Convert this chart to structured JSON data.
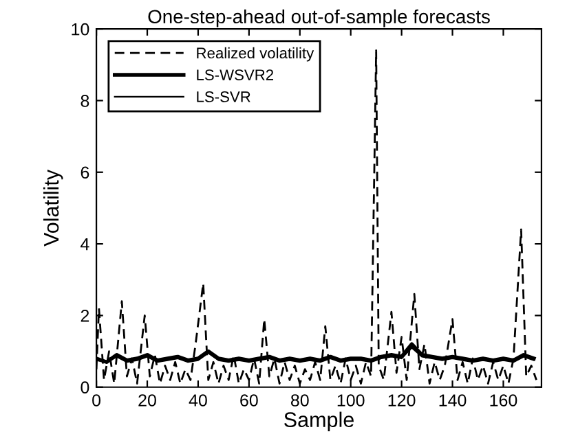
{
  "chart_data": {
    "type": "line",
    "title": "One-step-ahead out-of-sample forecasts",
    "xlabel": "Sample",
    "ylabel": "Volatility",
    "xlim": [
      0,
      175
    ],
    "ylim": [
      0,
      10
    ],
    "xticks": [
      0,
      20,
      40,
      60,
      80,
      100,
      120,
      140,
      160
    ],
    "yticks": [
      0,
      2,
      4,
      6,
      8,
      10
    ],
    "grid": false,
    "legend": "top left",
    "series": [
      {
        "name": "Realized volatility",
        "color": "#000000",
        "line_style": "dashed",
        "x": [
          0,
          1,
          3,
          5,
          7,
          10,
          12,
          14,
          16,
          19,
          21,
          23,
          25,
          27,
          29,
          31,
          33,
          35,
          37,
          39,
          42,
          44,
          46,
          48,
          50,
          52,
          54,
          56,
          58,
          60,
          62,
          64,
          66,
          68,
          70,
          72,
          74,
          76,
          78,
          80,
          82,
          84,
          86,
          88,
          90,
          92,
          94,
          96,
          98,
          100,
          102,
          104,
          106,
          108,
          110,
          111,
          113,
          116,
          118,
          120,
          122,
          125,
          127,
          129,
          131,
          133,
          135,
          137,
          140,
          142,
          144,
          146,
          148,
          150,
          152,
          154,
          156,
          158,
          160,
          162,
          164,
          167,
          169,
          171,
          173
        ],
        "values": [
          0.5,
          2.2,
          0.2,
          1.0,
          0.1,
          2.4,
          0.3,
          0.8,
          0.1,
          2.0,
          0.3,
          0.9,
          0.1,
          0.6,
          0.2,
          0.7,
          0.1,
          0.5,
          0.2,
          1.2,
          2.9,
          0.2,
          0.7,
          0.1,
          0.6,
          0.2,
          0.9,
          0.1,
          0.5,
          0.2,
          0.8,
          0.1,
          1.9,
          0.3,
          0.8,
          0.1,
          0.7,
          0.2,
          0.6,
          0.1,
          0.5,
          0.2,
          0.7,
          0.2,
          1.7,
          0.2,
          0.6,
          0.1,
          0.8,
          0.2,
          0.6,
          0.1,
          0.7,
          0.3,
          9.4,
          0.6,
          0.2,
          2.1,
          0.4,
          1.4,
          0.2,
          2.6,
          0.5,
          1.2,
          0.1,
          0.7,
          0.2,
          0.6,
          1.9,
          0.2,
          0.7,
          0.1,
          0.8,
          0.2,
          0.6,
          0.1,
          0.7,
          0.2,
          0.6,
          0.1,
          0.8,
          4.4,
          0.3,
          0.6,
          0.2
        ]
      },
      {
        "name": "LS-WSVR2",
        "color": "#000000",
        "line_style": "solid",
        "x": [
          0,
          4,
          8,
          12,
          16,
          20,
          24,
          28,
          32,
          36,
          40,
          44,
          48,
          52,
          56,
          60,
          64,
          68,
          72,
          76,
          80,
          84,
          88,
          92,
          96,
          100,
          104,
          108,
          112,
          116,
          120,
          124,
          128,
          132,
          136,
          140,
          144,
          148,
          152,
          156,
          160,
          164,
          168,
          172
        ],
        "values": [
          0.8,
          0.7,
          0.9,
          0.75,
          0.8,
          0.9,
          0.75,
          0.8,
          0.85,
          0.75,
          0.8,
          1.0,
          0.8,
          0.75,
          0.8,
          0.75,
          0.8,
          0.85,
          0.75,
          0.8,
          0.75,
          0.8,
          0.75,
          0.85,
          0.75,
          0.8,
          0.8,
          0.75,
          0.85,
          0.9,
          0.85,
          1.2,
          0.9,
          0.85,
          0.8,
          0.85,
          0.8,
          0.75,
          0.8,
          0.75,
          0.8,
          0.75,
          0.9,
          0.8
        ]
      },
      {
        "name": "LS-SVR",
        "color": "#000000",
        "line_style": "solid",
        "x": [
          0,
          4,
          8,
          12,
          16,
          20,
          24,
          28,
          32,
          36,
          40,
          44,
          48,
          52,
          56,
          60,
          64,
          68,
          72,
          76,
          80,
          84,
          88,
          92,
          96,
          100,
          104,
          108,
          112,
          116,
          120,
          124,
          128,
          132,
          136,
          140,
          144,
          148,
          152,
          156,
          160,
          164,
          168,
          172
        ],
        "values": [
          0.75,
          0.7,
          0.85,
          0.7,
          0.75,
          0.85,
          0.7,
          0.75,
          0.8,
          0.7,
          0.75,
          0.95,
          0.75,
          0.7,
          0.75,
          0.7,
          0.75,
          0.8,
          0.7,
          0.75,
          0.7,
          0.75,
          0.7,
          0.8,
          0.7,
          0.75,
          0.75,
          0.7,
          0.8,
          0.85,
          0.8,
          1.1,
          0.85,
          0.8,
          0.75,
          0.8,
          0.75,
          0.7,
          0.75,
          0.7,
          0.75,
          0.7,
          0.85,
          0.75
        ]
      }
    ]
  }
}
